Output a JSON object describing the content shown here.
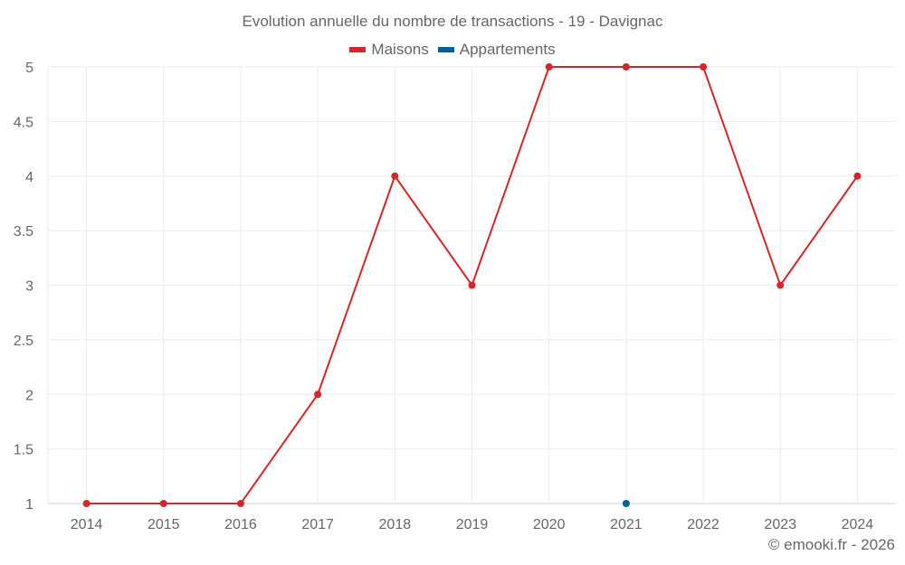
{
  "chart": {
    "title": "Evolution annuelle du nombre de transactions - 19 - Davignac",
    "credit": "© emooki.fr - 2026"
  },
  "legend": [
    {
      "label": "Maisons",
      "color": "#d62728"
    },
    {
      "label": "Appartements",
      "color": "#00609c"
    }
  ],
  "chart_data": {
    "type": "line",
    "title": "Evolution annuelle du nombre de transactions - 19 - Davignac",
    "xlabel": "",
    "ylabel": "",
    "categories": [
      "2014",
      "2015",
      "2016",
      "2017",
      "2018",
      "2019",
      "2020",
      "2021",
      "2022",
      "2023",
      "2024"
    ],
    "series": [
      {
        "name": "Maisons",
        "color": "#d62728",
        "values": [
          1,
          1,
          1,
          2,
          4,
          3,
          5,
          5,
          5,
          3,
          4
        ]
      },
      {
        "name": "Appartements",
        "color": "#00609c",
        "values": [
          null,
          null,
          null,
          null,
          null,
          null,
          null,
          1,
          null,
          null,
          null
        ]
      }
    ],
    "ylim": [
      1,
      5
    ],
    "yticks": [
      "1",
      "1.5",
      "2",
      "2.5",
      "3",
      "3.5",
      "4",
      "4.5",
      "5"
    ],
    "grid": true,
    "legend_position": "top"
  }
}
